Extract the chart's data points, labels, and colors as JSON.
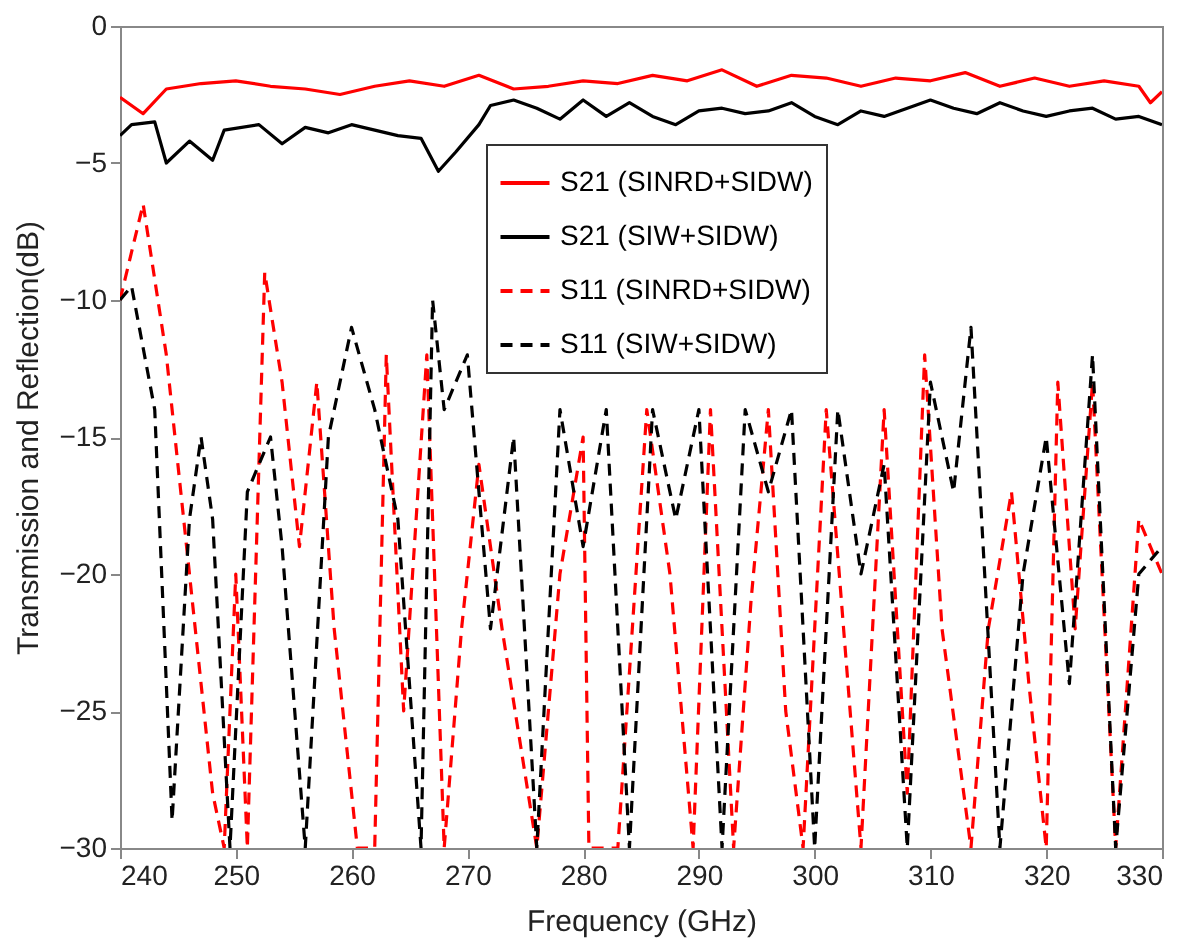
{
  "chart_data": {
    "type": "line",
    "xlabel": "Frequency (GHz)",
    "ylabel": "Transmission and Reflection(dB)",
    "xlim": [
      240,
      330
    ],
    "xticks": [
      240,
      250,
      260,
      270,
      280,
      290,
      300,
      310,
      320,
      330
    ],
    "ylim": [
      -30,
      0
    ],
    "yticks": [
      -30,
      -25,
      -20,
      -15,
      -10,
      -5,
      0
    ],
    "legend": "top right",
    "series": [
      {
        "name": "S21 (SINRD+SIDW)",
        "color": "#ff0000",
        "line_style": "solid",
        "x": [
          240,
          242,
          244,
          247,
          250,
          253,
          256,
          259,
          262,
          265,
          268,
          271,
          274,
          277,
          280,
          283,
          286,
          289,
          292,
          295,
          298,
          301,
          304,
          307,
          310,
          313,
          316,
          319,
          322,
          325,
          328,
          329,
          330
        ],
        "values": [
          -2.6,
          -3.2,
          -2.3,
          -2.1,
          -2.0,
          -2.2,
          -2.3,
          -2.5,
          -2.2,
          -2.0,
          -2.2,
          -1.8,
          -2.3,
          -2.2,
          -2.0,
          -2.1,
          -1.8,
          -2.0,
          -1.6,
          -2.2,
          -1.8,
          -1.9,
          -2.2,
          -1.9,
          -2.0,
          -1.7,
          -2.2,
          -1.9,
          -2.2,
          -2.0,
          -2.2,
          -2.8,
          -2.4
        ]
      },
      {
        "name": "S21 (SIW+SIDW)",
        "color": "#000000",
        "line_style": "solid",
        "x": [
          240,
          241,
          243,
          244,
          246,
          248,
          249,
          252,
          254,
          256,
          258,
          260,
          262,
          264,
          266,
          267.5,
          269,
          271,
          272,
          274,
          276,
          278,
          280,
          282,
          284,
          286,
          288,
          290,
          292,
          294,
          296,
          298,
          300,
          302,
          304,
          306,
          308,
          310,
          312,
          314,
          316,
          318,
          320,
          322,
          324,
          326,
          328,
          330
        ],
        "values": [
          -4.0,
          -3.6,
          -3.5,
          -5.0,
          -4.2,
          -4.9,
          -3.8,
          -3.6,
          -4.3,
          -3.7,
          -3.9,
          -3.6,
          -3.8,
          -4.0,
          -4.1,
          -5.3,
          -4.6,
          -3.6,
          -2.9,
          -2.7,
          -3.0,
          -3.4,
          -2.7,
          -3.3,
          -2.8,
          -3.3,
          -3.6,
          -3.1,
          -3.0,
          -3.2,
          -3.1,
          -2.8,
          -3.3,
          -3.6,
          -3.1,
          -3.3,
          -3.0,
          -2.7,
          -3.0,
          -3.2,
          -2.8,
          -3.1,
          -3.3,
          -3.1,
          -3.0,
          -3.4,
          -3.3,
          -3.6
        ]
      },
      {
        "name": "S11 (SINRD+SIDW)",
        "color": "#ff0000",
        "line_style": "dashed",
        "x": [
          240,
          242,
          244,
          246,
          248,
          249,
          250,
          251,
          252.5,
          254,
          255.5,
          257,
          258.5,
          260.5,
          262,
          263,
          264.5,
          266.5,
          268,
          269.5,
          271,
          273,
          276,
          278,
          280,
          280.5,
          283,
          285.5,
          287.5,
          289.5,
          291,
          293,
          294.5,
          296,
          297.5,
          299,
          301,
          302.5,
          304,
          305,
          306,
          308,
          309.5,
          311,
          313.5,
          315,
          317,
          318.5,
          320,
          321,
          322.5,
          324,
          326,
          328,
          330
        ],
        "values": [
          -10,
          -6.5,
          -12,
          -20,
          -28,
          -30,
          -20,
          -30,
          -9,
          -13,
          -19,
          -13,
          -22,
          -30,
          -30,
          -12,
          -25,
          -12,
          -30,
          -22,
          -16,
          -22,
          -30,
          -20,
          -15,
          -30,
          -30,
          -14,
          -20,
          -30,
          -14,
          -30,
          -21,
          -14,
          -25,
          -30,
          -14,
          -22,
          -30,
          -22,
          -14,
          -28,
          -12,
          -22,
          -30,
          -22,
          -17,
          -24,
          -30,
          -13,
          -22,
          -13,
          -30,
          -18,
          -20
        ]
      },
      {
        "name": "S11 (SIW+SIDW)",
        "color": "#000000",
        "line_style": "dashed",
        "x": [
          240,
          241,
          243,
          244.5,
          246,
          247,
          248,
          249.5,
          251,
          253,
          254,
          256,
          258,
          260,
          262,
          264,
          266,
          267,
          268,
          270,
          272,
          274,
          276,
          278,
          280,
          282,
          284,
          286,
          288,
          290,
          292,
          294,
          296,
          298,
          300,
          302,
          304,
          306,
          308,
          310,
          312,
          313.5,
          316,
          318,
          320,
          322,
          324,
          326,
          328,
          330
        ],
        "values": [
          -10,
          -9.5,
          -14,
          -29,
          -18,
          -15,
          -18,
          -30,
          -17,
          -15,
          -19,
          -30,
          -15,
          -11,
          -14,
          -18,
          -30,
          -10,
          -14,
          -12,
          -22,
          -15,
          -30,
          -14,
          -19,
          -14,
          -30,
          -14,
          -18,
          -14,
          -30,
          -14,
          -17,
          -14,
          -30,
          -14,
          -20,
          -16,
          -30,
          -13,
          -17,
          -11,
          -30,
          -20,
          -15,
          -24,
          -12,
          -30,
          -20,
          -19
        ]
      }
    ]
  }
}
